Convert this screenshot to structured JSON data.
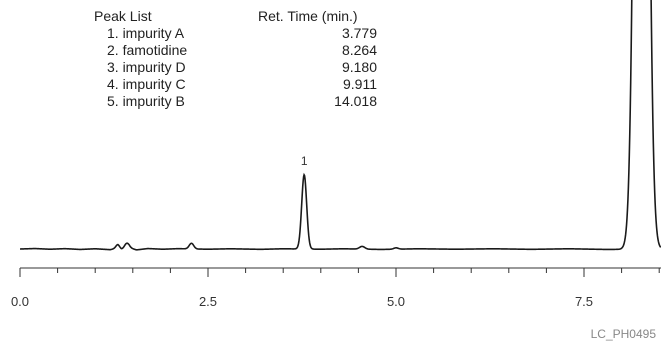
{
  "chart_data": {
    "type": "line",
    "title": "",
    "xlabel": "",
    "ylabel": "",
    "xlim": [
      0,
      8.6
    ],
    "x_ticks": [
      0.0,
      2.5,
      5.0,
      7.5
    ],
    "x_tick_labels": [
      "0.0",
      "2.5",
      "5.0",
      "7.5"
    ],
    "x_minor_ticks": [
      0.5,
      1.0,
      1.5,
      2.0,
      3.0,
      3.5,
      4.0,
      4.5,
      5.5,
      6.0,
      6.5,
      7.0,
      8.0,
      8.5
    ],
    "grid": false,
    "legend": "none",
    "line_color": "#1a1a1a",
    "baseline_noise": [
      {
        "x": 0.0,
        "y": 0.0
      },
      {
        "x": 0.2,
        "y": 0.2
      },
      {
        "x": 0.4,
        "y": -0.1
      },
      {
        "x": 0.6,
        "y": 0.15
      },
      {
        "x": 0.8,
        "y": -0.2
      },
      {
        "x": 1.0,
        "y": 0.1
      },
      {
        "x": 1.2,
        "y": -0.3
      },
      {
        "x": 1.3,
        "y": 0.5
      },
      {
        "x": 1.35,
        "y": -0.2
      },
      {
        "x": 1.45,
        "y": 0.6
      },
      {
        "x": 1.55,
        "y": -0.4
      },
      {
        "x": 1.7,
        "y": 0.2
      },
      {
        "x": 1.9,
        "y": -0.1
      },
      {
        "x": 2.1,
        "y": 0.15
      },
      {
        "x": 2.5,
        "y": -0.1
      },
      {
        "x": 2.8,
        "y": 0.1
      },
      {
        "x": 3.2,
        "y": -0.15
      },
      {
        "x": 3.5,
        "y": 0.1
      },
      {
        "x": 4.0,
        "y": -0.1
      },
      {
        "x": 4.3,
        "y": 0.1
      },
      {
        "x": 4.8,
        "y": -0.2
      },
      {
        "x": 5.3,
        "y": 0.1
      },
      {
        "x": 5.8,
        "y": -0.1
      },
      {
        "x": 6.3,
        "y": 0.1
      },
      {
        "x": 6.8,
        "y": -0.15
      },
      {
        "x": 7.3,
        "y": 0.1
      },
      {
        "x": 7.8,
        "y": -0.2
      },
      {
        "x": 8.6,
        "y": 0.0
      }
    ],
    "peaks": [
      {
        "label": "",
        "rt": 1.3,
        "height": 1.5,
        "width": 0.025
      },
      {
        "label": "",
        "rt": 1.42,
        "height": 2.2,
        "width": 0.03
      },
      {
        "label": "",
        "rt": 2.28,
        "height": 2.5,
        "width": 0.03
      },
      {
        "label": "1",
        "rt": 3.779,
        "height": 33,
        "width": 0.033
      },
      {
        "label": "",
        "rt": 4.55,
        "height": 1.2,
        "width": 0.035
      },
      {
        "label": "",
        "rt": 5.0,
        "height": 0.6,
        "width": 0.03
      },
      {
        "label": "",
        "rt": 8.264,
        "height": 600,
        "width": 0.07
      }
    ],
    "y_range": [
      -3,
      62
    ]
  },
  "peak_list": {
    "header_name": "Peak List",
    "header_rt": "Ret. Time (min.)",
    "rows": [
      {
        "name": "1. impurity A",
        "rt": "3.779"
      },
      {
        "name": "2. famotidine",
        "rt": "8.264"
      },
      {
        "name": "3. impurity D",
        "rt": "9.180"
      },
      {
        "name": "4. impurity C",
        "rt": "9.911"
      },
      {
        "name": "5. impurity B",
        "rt": "14.018"
      }
    ]
  },
  "footer": {
    "code": "LC_PH0495"
  }
}
